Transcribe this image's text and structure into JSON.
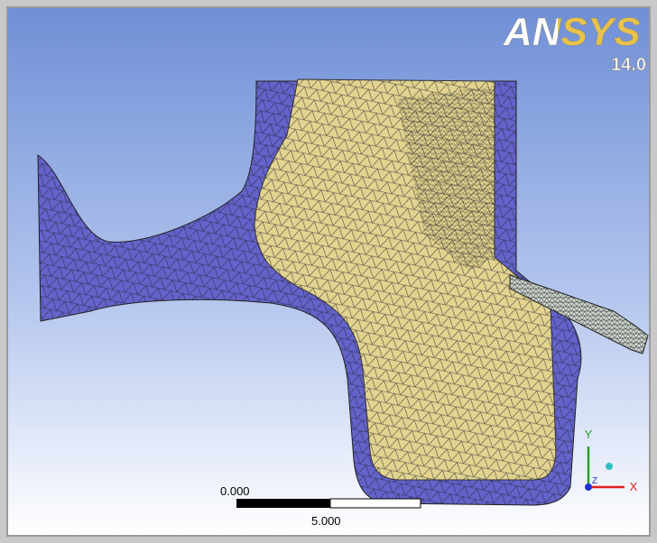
{
  "logo": {
    "brand": "ANSYS",
    "version": "14.0"
  },
  "scale_bar": {
    "start_label": "0.000",
    "end_label": "5.000"
  },
  "triad": {
    "y_label": "Y",
    "z_label": "Z",
    "x_label": "X"
  }
}
